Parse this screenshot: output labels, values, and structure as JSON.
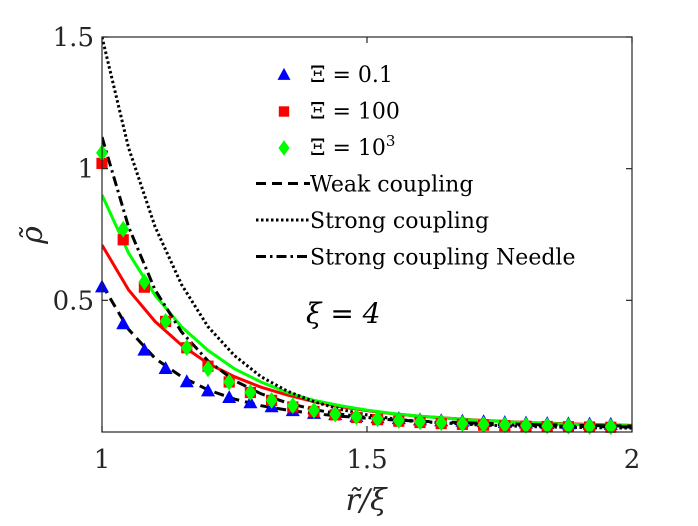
{
  "chart_data": {
    "type": "scatter",
    "xlabel": "r̃/ξ",
    "ylabel": "ρ̃",
    "xlim": [
      1,
      2
    ],
    "ylim": [
      0,
      1.5
    ],
    "xticks": [
      1,
      1.5,
      2
    ],
    "xtick_labels": [
      "1",
      "1.5",
      "2"
    ],
    "yticks": [
      0.5,
      1,
      1.5
    ],
    "ytick_labels": [
      "0.5",
      "1",
      "1.5"
    ],
    "grid": false,
    "legend_position": "top-right",
    "annotation": "ξ = 4",
    "colors": {
      "xi_0_1": "#0000ff",
      "xi_100": "#ff0000",
      "xi_1000": "#00ff00",
      "theory": "#000000",
      "axis": "#262626"
    },
    "series": [
      {
        "name": "Ξ = 0.1",
        "legend_base": "Ξ = 0.1",
        "legend_sup": "",
        "kind": "markers",
        "marker": "triangle",
        "color": "#0000ff",
        "x": [
          1.0,
          1.04,
          1.08,
          1.12,
          1.16,
          1.2,
          1.24,
          1.28,
          1.32,
          1.36,
          1.4,
          1.44,
          1.48,
          1.52,
          1.56,
          1.6,
          1.64,
          1.68,
          1.72,
          1.76,
          1.8,
          1.84,
          1.88,
          1.92,
          1.96
        ],
        "y": [
          0.55,
          0.41,
          0.31,
          0.24,
          0.19,
          0.155,
          0.13,
          0.11,
          0.095,
          0.08,
          0.07,
          0.065,
          0.058,
          0.053,
          0.05,
          0.045,
          0.042,
          0.04,
          0.038,
          0.035,
          0.033,
          0.031,
          0.03,
          0.029,
          0.028
        ]
      },
      {
        "name": "Ξ = 100",
        "legend_base": "Ξ = 100",
        "legend_sup": "",
        "kind": "markers",
        "marker": "square",
        "color": "#ff0000",
        "x": [
          1.0,
          1.04,
          1.08,
          1.12,
          1.16,
          1.2,
          1.24,
          1.28,
          1.32,
          1.36,
          1.4,
          1.44,
          1.48,
          1.52,
          1.56,
          1.6,
          1.64,
          1.68,
          1.72,
          1.76,
          1.8,
          1.84,
          1.88,
          1.92,
          1.96
        ],
        "y": [
          1.02,
          0.73,
          0.55,
          0.42,
          0.32,
          0.25,
          0.19,
          0.15,
          0.12,
          0.095,
          0.078,
          0.065,
          0.055,
          0.047,
          0.041,
          0.036,
          0.032,
          0.029,
          0.026,
          0.024,
          0.022,
          0.021,
          0.02,
          0.019,
          0.018
        ]
      },
      {
        "name": "Ξ = 10³",
        "legend_base": "Ξ = 10",
        "legend_sup": "3",
        "kind": "markers",
        "marker": "diamond",
        "color": "#00ff00",
        "x": [
          1.0,
          1.04,
          1.08,
          1.12,
          1.16,
          1.2,
          1.24,
          1.28,
          1.32,
          1.36,
          1.4,
          1.44,
          1.48,
          1.52,
          1.56,
          1.6,
          1.64,
          1.68,
          1.72,
          1.76,
          1.8,
          1.84,
          1.88,
          1.92,
          1.96
        ],
        "y": [
          1.06,
          0.77,
          0.57,
          0.42,
          0.32,
          0.24,
          0.19,
          0.15,
          0.12,
          0.1,
          0.082,
          0.068,
          0.058,
          0.05,
          0.044,
          0.039,
          0.035,
          0.032,
          0.029,
          0.027,
          0.025,
          0.023,
          0.022,
          0.021,
          0.02
        ]
      },
      {
        "name": "",
        "kind": "line",
        "color": "#ff0000",
        "dash": "solid",
        "width": 3,
        "x": [
          1.0,
          1.05,
          1.1,
          1.15,
          1.2,
          1.25,
          1.3,
          1.35,
          1.4,
          1.45,
          1.5,
          1.55,
          1.6,
          1.7,
          1.8,
          1.9,
          2.0
        ],
        "y": [
          0.71,
          0.54,
          0.42,
          0.33,
          0.26,
          0.21,
          0.17,
          0.14,
          0.115,
          0.096,
          0.081,
          0.069,
          0.06,
          0.046,
          0.036,
          0.03,
          0.025
        ]
      },
      {
        "name": "",
        "kind": "line",
        "color": "#00ff00",
        "dash": "solid",
        "width": 3,
        "x": [
          1.0,
          1.05,
          1.1,
          1.15,
          1.2,
          1.25,
          1.3,
          1.35,
          1.4,
          1.45,
          1.5,
          1.55,
          1.6,
          1.7,
          1.8,
          1.9,
          2.0
        ],
        "y": [
          0.9,
          0.68,
          0.52,
          0.4,
          0.31,
          0.24,
          0.19,
          0.15,
          0.12,
          0.1,
          0.083,
          0.07,
          0.06,
          0.045,
          0.035,
          0.028,
          0.023
        ]
      },
      {
        "name": "Weak coupling",
        "legend_base": "Weak coupling",
        "legend_sup": "",
        "kind": "line",
        "color": "#000000",
        "dash": "dashed",
        "width": 3,
        "x": [
          1.0,
          1.05,
          1.1,
          1.15,
          1.2,
          1.25,
          1.3,
          1.35,
          1.4,
          1.45,
          1.5,
          1.55,
          1.6,
          1.7,
          1.8,
          1.9,
          2.0
        ],
        "y": [
          0.56,
          0.39,
          0.28,
          0.21,
          0.16,
          0.125,
          0.1,
          0.083,
          0.07,
          0.06,
          0.052,
          0.046,
          0.041,
          0.034,
          0.029,
          0.025,
          0.022
        ]
      },
      {
        "name": "Strong coupling",
        "legend_base": "Strong coupling",
        "legend_sup": "",
        "kind": "line",
        "color": "#000000",
        "dash": "dotted",
        "width": 3,
        "x": [
          1.0,
          1.05,
          1.1,
          1.15,
          1.2,
          1.25,
          1.3,
          1.35,
          1.4,
          1.45,
          1.5,
          1.55,
          1.6,
          1.7,
          1.8,
          1.9,
          2.0
        ],
        "y": [
          1.5,
          1.08,
          0.78,
          0.56,
          0.4,
          0.29,
          0.21,
          0.155,
          0.115,
          0.086,
          0.065,
          0.05,
          0.04,
          0.028,
          0.021,
          0.017,
          0.015
        ]
      },
      {
        "name": "Strong coupling Needle",
        "legend_base": "Strong coupling Needle",
        "legend_sup": "",
        "kind": "line",
        "color": "#000000",
        "dash": "dashdot",
        "width": 3,
        "x": [
          1.0,
          1.05,
          1.1,
          1.15,
          1.2,
          1.25,
          1.3,
          1.35,
          1.4,
          1.45,
          1.5,
          1.55,
          1.6,
          1.7,
          1.8,
          1.9,
          2.0
        ],
        "y": [
          1.12,
          0.78,
          0.54,
          0.38,
          0.27,
          0.195,
          0.145,
          0.11,
          0.085,
          0.068,
          0.055,
          0.046,
          0.039,
          0.03,
          0.025,
          0.021,
          0.019
        ]
      }
    ]
  }
}
